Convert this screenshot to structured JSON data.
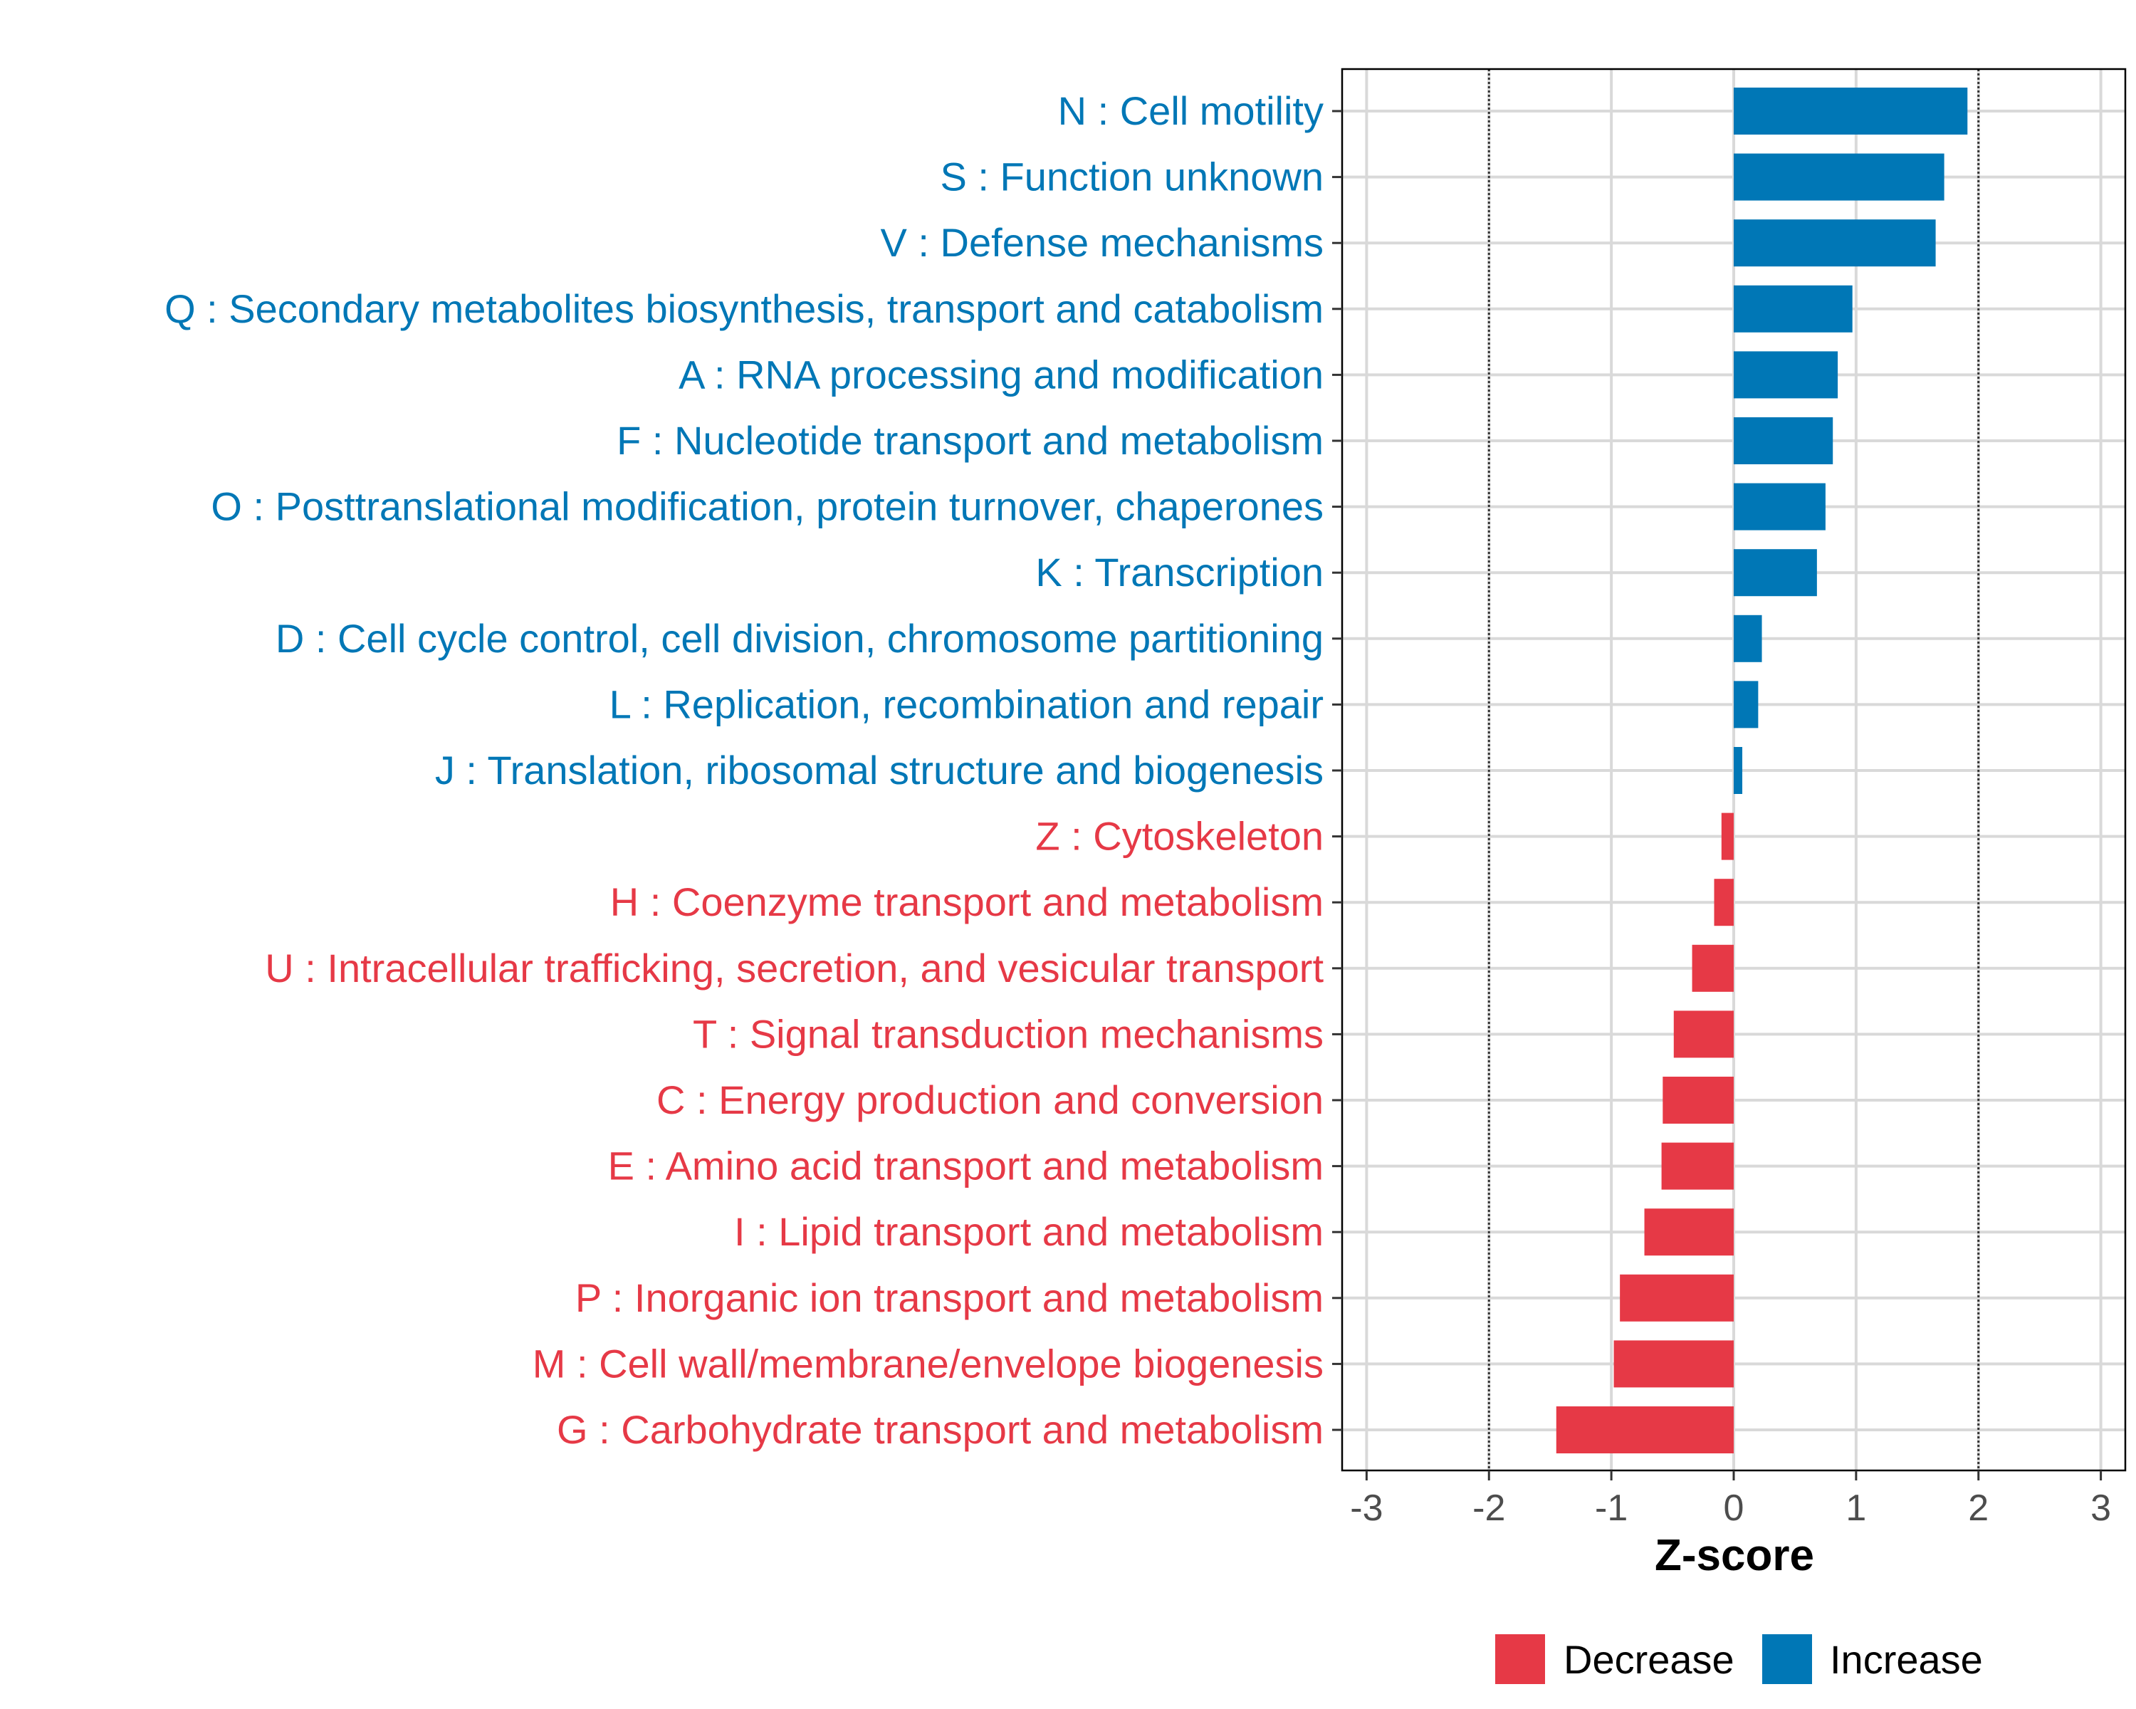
{
  "chart_data": {
    "type": "bar",
    "orientation": "horizontal",
    "title": "",
    "xlabel": "Z-score",
    "ylabel": "",
    "xlim": [
      -3.2,
      3.2
    ],
    "xticks": [
      -3,
      -2,
      -1,
      0,
      1,
      2,
      3
    ],
    "xtick_labels": [
      "-3",
      "-2",
      "-1",
      "0",
      "1",
      "2",
      "3"
    ],
    "reference_lines": [
      -2,
      2
    ],
    "grid": true,
    "legend_position": "bottom",
    "categories": [
      "N : Cell motility",
      "S : Function unknown",
      "V : Defense mechanisms",
      "Q : Secondary metabolites biosynthesis, transport and catabolism",
      "A : RNA processing and modification",
      "F : Nucleotide transport and metabolism",
      "O : Posttranslational modification, protein turnover, chaperones",
      "K : Transcription",
      "D : Cell cycle control, cell division, chromosome partitioning",
      "L : Replication, recombination and repair",
      "J : Translation, ribosomal structure and biogenesis",
      "Z : Cytoskeleton",
      "H : Coenzyme transport and metabolism",
      "U : Intracellular trafficking, secretion, and vesicular transport",
      "T : Signal transduction mechanisms",
      "C : Energy production and conversion",
      "E : Amino acid transport and metabolism",
      "I : Lipid transport and metabolism",
      "P : Inorganic ion transport and metabolism",
      "M : Cell wall/membrane/envelope biogenesis",
      "G : Carbohydrate transport and metabolism"
    ],
    "values": [
      1.91,
      1.72,
      1.65,
      0.97,
      0.85,
      0.81,
      0.75,
      0.68,
      0.23,
      0.2,
      0.07,
      -0.1,
      -0.16,
      -0.34,
      -0.49,
      -0.58,
      -0.59,
      -0.73,
      -0.93,
      -0.98,
      -1.45
    ],
    "groups": [
      "Increase",
      "Increase",
      "Increase",
      "Increase",
      "Increase",
      "Increase",
      "Increase",
      "Increase",
      "Increase",
      "Increase",
      "Increase",
      "Decrease",
      "Decrease",
      "Decrease",
      "Decrease",
      "Decrease",
      "Decrease",
      "Decrease",
      "Decrease",
      "Decrease",
      "Decrease"
    ],
    "legend": [
      {
        "name": "Decrease",
        "color": "#e63946"
      },
      {
        "name": "Increase",
        "color": "#0077b6"
      }
    ]
  },
  "colors": {
    "increase": "#0077b6",
    "decrease": "#e63946",
    "grid": "#d9d9d9",
    "axis": "#000000",
    "tick_text": "#4d4d4d"
  }
}
